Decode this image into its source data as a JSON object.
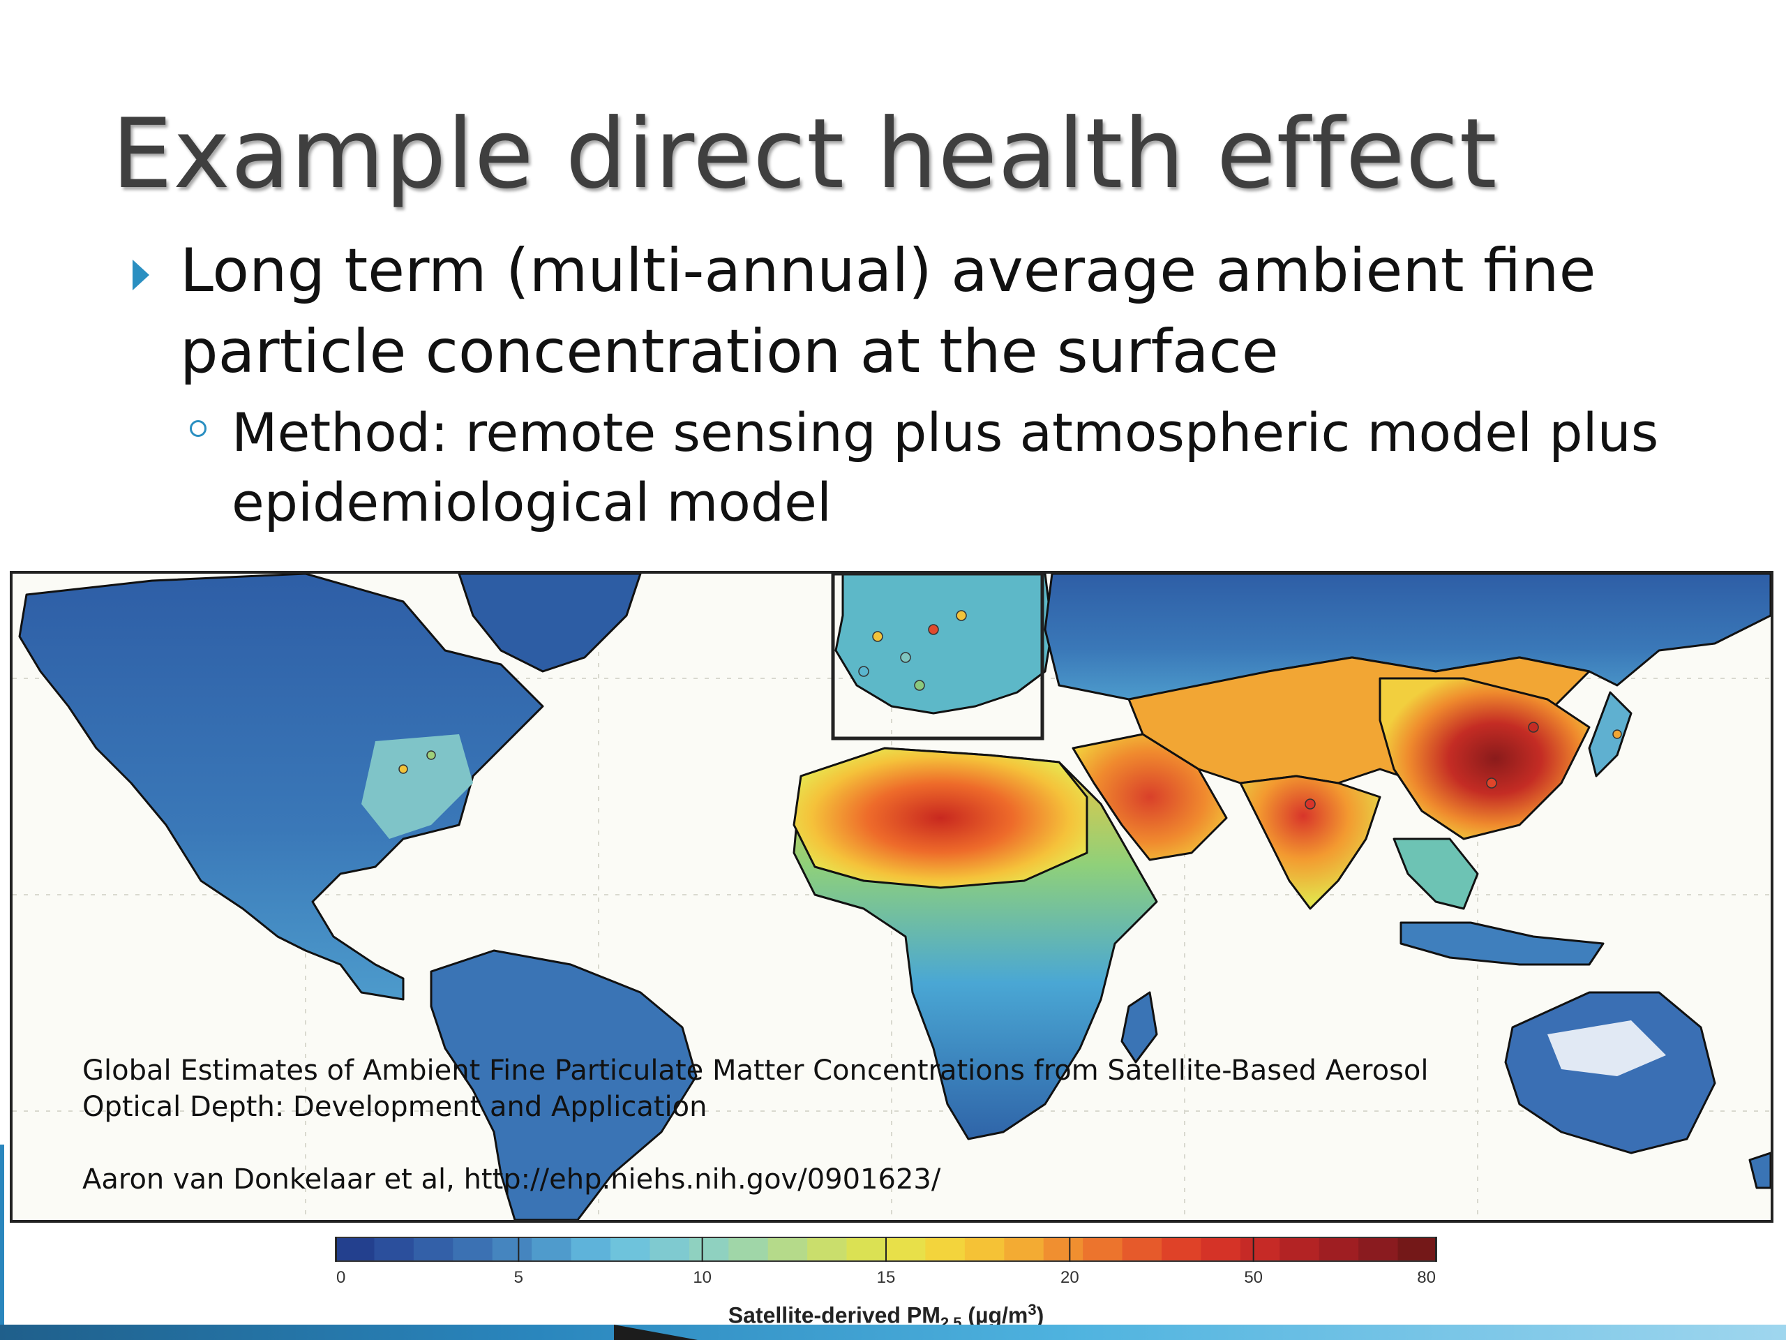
{
  "slide": {
    "title": "Example direct health effect",
    "bullet1": "Long term (multi-annual) average ambient fine particle concentration at the surface",
    "bullet2": "Method: remote sensing plus atmospheric model plus epidemiological model"
  },
  "citation": {
    "line1": "Global Estimates of Ambient Fine Particulate Matter Concentrations from Satellite-Based Aerosol",
    "line2": "Optical Depth: Development and Application",
    "line3": "Aaron van Donkelaar et al, http://ehp.niehs.nih.gov/0901623/"
  },
  "map": {
    "subject": "Satellite-derived PM2.5 world map",
    "colors": {
      "ocean": "#fbfbf6",
      "low": "#2c5aa0",
      "mid_low": "#5fb5d8",
      "mid": "#e4e34a",
      "mid_high": "#f0a030",
      "high": "#d8352a",
      "max": "#8a1b1b"
    }
  },
  "legend": {
    "title_main": "Satellite-derived PM",
    "title_sub": "2.5",
    "title_unit_open": " (µg/m",
    "title_sup": "3",
    "title_unit_close": ")",
    "ticks": [
      "0",
      "5",
      "10",
      "15",
      "20",
      "50",
      "80"
    ]
  }
}
